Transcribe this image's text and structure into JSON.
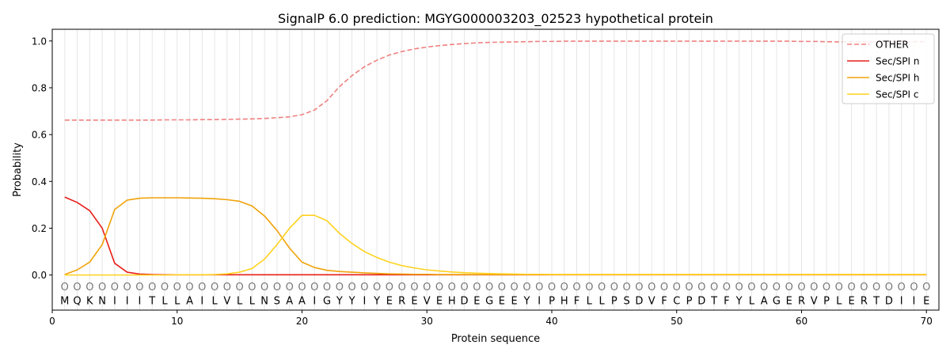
{
  "chart_data": {
    "type": "line",
    "title": "SignalP 6.0 prediction: MGYG000003203_02523 hypothetical protein",
    "xlabel": "Protein sequence",
    "ylabel": "Probability",
    "xlim": [
      0,
      71
    ],
    "ylim": [
      -0.15,
      1.05
    ],
    "x_ticks": [
      0,
      10,
      20,
      30,
      40,
      50,
      60,
      70
    ],
    "y_ticks": [
      0.0,
      0.2,
      0.4,
      0.6,
      0.8,
      1.0
    ],
    "x_tick_labels": [
      "0",
      "10",
      "20",
      "30",
      "40",
      "50",
      "60",
      "70"
    ],
    "y_tick_labels": [
      "0.0",
      "0.2",
      "0.4",
      "0.6",
      "0.8",
      "1.0"
    ],
    "grid": "vertical lines at each residue",
    "legend_position": "top-right",
    "sequence": [
      "M",
      "Q",
      "K",
      "N",
      "I",
      "I",
      "I",
      "T",
      "L",
      "L",
      "A",
      "I",
      "L",
      "V",
      "L",
      "L",
      "N",
      "S",
      "A",
      "A",
      "I",
      "G",
      "Y",
      "Y",
      "I",
      "Y",
      "E",
      "R",
      "E",
      "V",
      "E",
      "H",
      "D",
      "E",
      "G",
      "E",
      "E",
      "Y",
      "I",
      "P",
      "H",
      "F",
      "L",
      "L",
      "P",
      "S",
      "D",
      "V",
      "F",
      "C",
      "P",
      "D",
      "T",
      "F",
      "Y",
      "L",
      "A",
      "G",
      "E",
      "R",
      "V",
      "P",
      "L",
      "E",
      "R",
      "T",
      "D",
      "I",
      "I",
      "E"
    ],
    "region_marker": "O",
    "series": [
      {
        "name": "OTHER",
        "color": "#f08080",
        "dash": true,
        "values": [
          0.662,
          0.662,
          0.662,
          0.662,
          0.662,
          0.662,
          0.662,
          0.662,
          0.663,
          0.663,
          0.663,
          0.664,
          0.664,
          0.665,
          0.666,
          0.667,
          0.669,
          0.672,
          0.676,
          0.685,
          0.705,
          0.745,
          0.805,
          0.852,
          0.89,
          0.918,
          0.94,
          0.955,
          0.966,
          0.974,
          0.98,
          0.985,
          0.989,
          0.992,
          0.994,
          0.995,
          0.996,
          0.997,
          0.998,
          0.998,
          0.999,
          0.999,
          0.999,
          0.999,
          0.999,
          0.999,
          0.999,
          0.999,
          0.999,
          0.999,
          0.999,
          0.999,
          0.999,
          0.999,
          0.999,
          0.999,
          0.999,
          0.999,
          0.999,
          0.998,
          0.998,
          0.997,
          0.996,
          0.996,
          0.996,
          0.996,
          0.996,
          0.997,
          0.997,
          0.997
        ]
      },
      {
        "name": "Sec/SPI n",
        "color": "#e8201a",
        "dash": false,
        "values": [
          0.333,
          0.31,
          0.275,
          0.2,
          0.05,
          0.012,
          0.004,
          0.002,
          0.001,
          0.001,
          0.001,
          0.001,
          0.001,
          0.001,
          0.001,
          0.001,
          0.001,
          0.001,
          0.001,
          0.001,
          0.001,
          0.001,
          0.001,
          0.001,
          0.001,
          0.001,
          0.001,
          0.001,
          0.001,
          0.001,
          0.001,
          0.001,
          0.001,
          0.001,
          0.001,
          0.001,
          0.001,
          0.001,
          0.001,
          0.001,
          0.001,
          0.001,
          0.001,
          0.001,
          0.001,
          0.001,
          0.001,
          0.001,
          0.001,
          0.001,
          0.001,
          0.001,
          0.001,
          0.001,
          0.001,
          0.001,
          0.001,
          0.001,
          0.001,
          0.001,
          0.001,
          0.001,
          0.001,
          0.001,
          0.001,
          0.001,
          0.001,
          0.001,
          0.001,
          0.001
        ]
      },
      {
        "name": "Sec/SPI h",
        "color": "#f0a30a",
        "dash": false,
        "values": [
          0.002,
          0.022,
          0.055,
          0.13,
          0.28,
          0.32,
          0.328,
          0.33,
          0.33,
          0.33,
          0.329,
          0.328,
          0.326,
          0.322,
          0.315,
          0.295,
          0.252,
          0.19,
          0.115,
          0.055,
          0.032,
          0.02,
          0.015,
          0.012,
          0.009,
          0.007,
          0.005,
          0.004,
          0.003,
          0.003,
          0.002,
          0.002,
          0.002,
          0.002,
          0.002,
          0.002,
          0.002,
          0.002,
          0.002,
          0.002,
          0.002,
          0.002,
          0.002,
          0.002,
          0.002,
          0.002,
          0.002,
          0.002,
          0.002,
          0.002,
          0.002,
          0.002,
          0.002,
          0.002,
          0.002,
          0.002,
          0.002,
          0.002,
          0.002,
          0.002,
          0.002,
          0.002,
          0.002,
          0.002,
          0.002,
          0.002,
          0.002,
          0.002,
          0.002,
          0.002
        ]
      },
      {
        "name": "Sec/SPI c",
        "color": "#ffd21f",
        "dash": false,
        "values": [
          0.0,
          0.0,
          0.0,
          0.0,
          0.0,
          0.0,
          0.0,
          0.0,
          0.0,
          0.001,
          0.001,
          0.001,
          0.002,
          0.005,
          0.012,
          0.028,
          0.068,
          0.13,
          0.2,
          0.255,
          0.255,
          0.232,
          0.178,
          0.135,
          0.1,
          0.075,
          0.055,
          0.04,
          0.03,
          0.022,
          0.017,
          0.013,
          0.01,
          0.008,
          0.006,
          0.005,
          0.004,
          0.003,
          0.003,
          0.002,
          0.002,
          0.002,
          0.002,
          0.002,
          0.002,
          0.002,
          0.002,
          0.002,
          0.002,
          0.002,
          0.002,
          0.002,
          0.002,
          0.002,
          0.002,
          0.002,
          0.002,
          0.002,
          0.002,
          0.002,
          0.002,
          0.002,
          0.002,
          0.002,
          0.002,
          0.002,
          0.002,
          0.002,
          0.002,
          0.002
        ]
      }
    ]
  }
}
